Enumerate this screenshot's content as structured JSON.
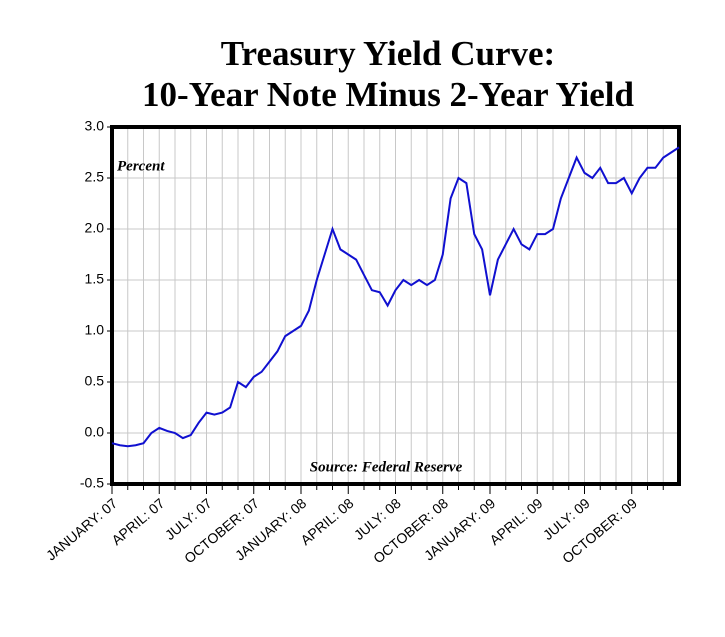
{
  "chart_data": {
    "type": "line",
    "title": [
      "Treasury Yield Curve:",
      "10-Year Note Minus 2-Year Yield"
    ],
    "annotations": [
      "Percent",
      "Source: Federal Reserve"
    ],
    "x": [
      0,
      0.5,
      1,
      1.5,
      2,
      2.5,
      3,
      3.5,
      4,
      4.5,
      5,
      5.5,
      6,
      6.5,
      7,
      7.5,
      8,
      8.5,
      9,
      9.5,
      10,
      10.5,
      11,
      11.5,
      12,
      12.5,
      13,
      13.5,
      14,
      14.5,
      15,
      15.5,
      16,
      16.5,
      17,
      17.5,
      18,
      18.5,
      19,
      19.5,
      20,
      20.5,
      21,
      21.5,
      22,
      22.5,
      23,
      23.5,
      24,
      24.5,
      25,
      25.5,
      26,
      26.5,
      27,
      27.5,
      28,
      28.5,
      29,
      29.5,
      30,
      30.5,
      31,
      31.5,
      32,
      32.5,
      33,
      33.5,
      34,
      34.5,
      35,
      35.5,
      36
    ],
    "series": [
      {
        "name": "10-Year Minus 2-Year",
        "color": "#1010d0",
        "values": [
          -0.1,
          -0.12,
          -0.13,
          -0.12,
          -0.1,
          0.0,
          0.05,
          0.02,
          0.0,
          -0.05,
          -0.02,
          0.1,
          0.2,
          0.18,
          0.2,
          0.25,
          0.5,
          0.45,
          0.55,
          0.6,
          0.7,
          0.8,
          0.95,
          1.0,
          1.05,
          1.2,
          1.5,
          1.75,
          2.0,
          1.8,
          1.75,
          1.7,
          1.55,
          1.4,
          1.38,
          1.25,
          1.4,
          1.5,
          1.45,
          1.5,
          1.45,
          1.5,
          1.75,
          2.3,
          2.5,
          2.45,
          1.95,
          1.8,
          1.35,
          1.7,
          1.85,
          2.0,
          1.85,
          1.8,
          1.95,
          1.95,
          2.0,
          2.3,
          2.5,
          2.7,
          2.55,
          2.5,
          2.6,
          2.45,
          2.45,
          2.5,
          2.35,
          2.5,
          2.6,
          2.6,
          2.7,
          2.75,
          2.8
        ]
      }
    ],
    "xlim": [
      0,
      36
    ],
    "xticks": [
      {
        "value": 0,
        "label": "JANUARY: 07"
      },
      {
        "value": 3,
        "label": "APRIL: 07"
      },
      {
        "value": 6,
        "label": "JULY: 07"
      },
      {
        "value": 9,
        "label": "OCTOBER: 07"
      },
      {
        "value": 12,
        "label": "JANUARY: 08"
      },
      {
        "value": 15,
        "label": "APRIL: 08"
      },
      {
        "value": 18,
        "label": "JULY: 08"
      },
      {
        "value": 21,
        "label": "OCTOBER: 08"
      },
      {
        "value": 24,
        "label": "JANUARY: 09"
      },
      {
        "value": 27,
        "label": "APRIL: 09"
      },
      {
        "value": 30,
        "label": "JULY: 09"
      },
      {
        "value": 33,
        "label": "OCTOBER: 09"
      }
    ],
    "xminor": [
      1,
      2,
      4,
      5,
      7,
      8,
      10,
      11,
      13,
      14,
      16,
      17,
      19,
      20,
      22,
      23,
      25,
      26,
      28,
      29,
      31,
      32,
      34,
      35
    ],
    "ylim": [
      -0.5,
      3
    ],
    "yticks": [
      -0.5,
      {
        "value": 0,
        "label": "0.0"
      },
      0.5,
      {
        "value": 1,
        "label": "1.0"
      },
      1.5,
      {
        "value": 2,
        "label": "2.0"
      },
      2.5,
      {
        "value": 3,
        "label": "3.0"
      }
    ],
    "grid": true
  }
}
